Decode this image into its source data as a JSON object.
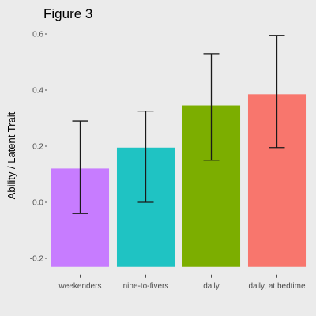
{
  "chart_data": {
    "type": "bar",
    "title": "Figure 3",
    "xlabel": "",
    "ylabel": "Ability / Latent Trait",
    "categories": [
      "weekenders",
      "nine-to-fivers",
      "daily",
      "daily, at bedtime"
    ],
    "values": [
      0.12,
      0.195,
      0.345,
      0.385
    ],
    "error_low": [
      -0.04,
      0.0,
      0.15,
      0.195
    ],
    "error_high": [
      0.29,
      0.325,
      0.53,
      0.595
    ],
    "colors": [
      "#c77cff",
      "#1fc3c3",
      "#7cae00",
      "#f8766d"
    ],
    "yticks": [
      -0.2,
      0.0,
      0.2,
      0.4,
      0.6
    ],
    "ytick_labels": [
      "-0.2",
      "0.0",
      "0.2",
      "0.4",
      "0.6"
    ],
    "ylim": [
      -0.25,
      0.62
    ],
    "grid": false,
    "background": "#ebebeb",
    "legend": "none"
  }
}
